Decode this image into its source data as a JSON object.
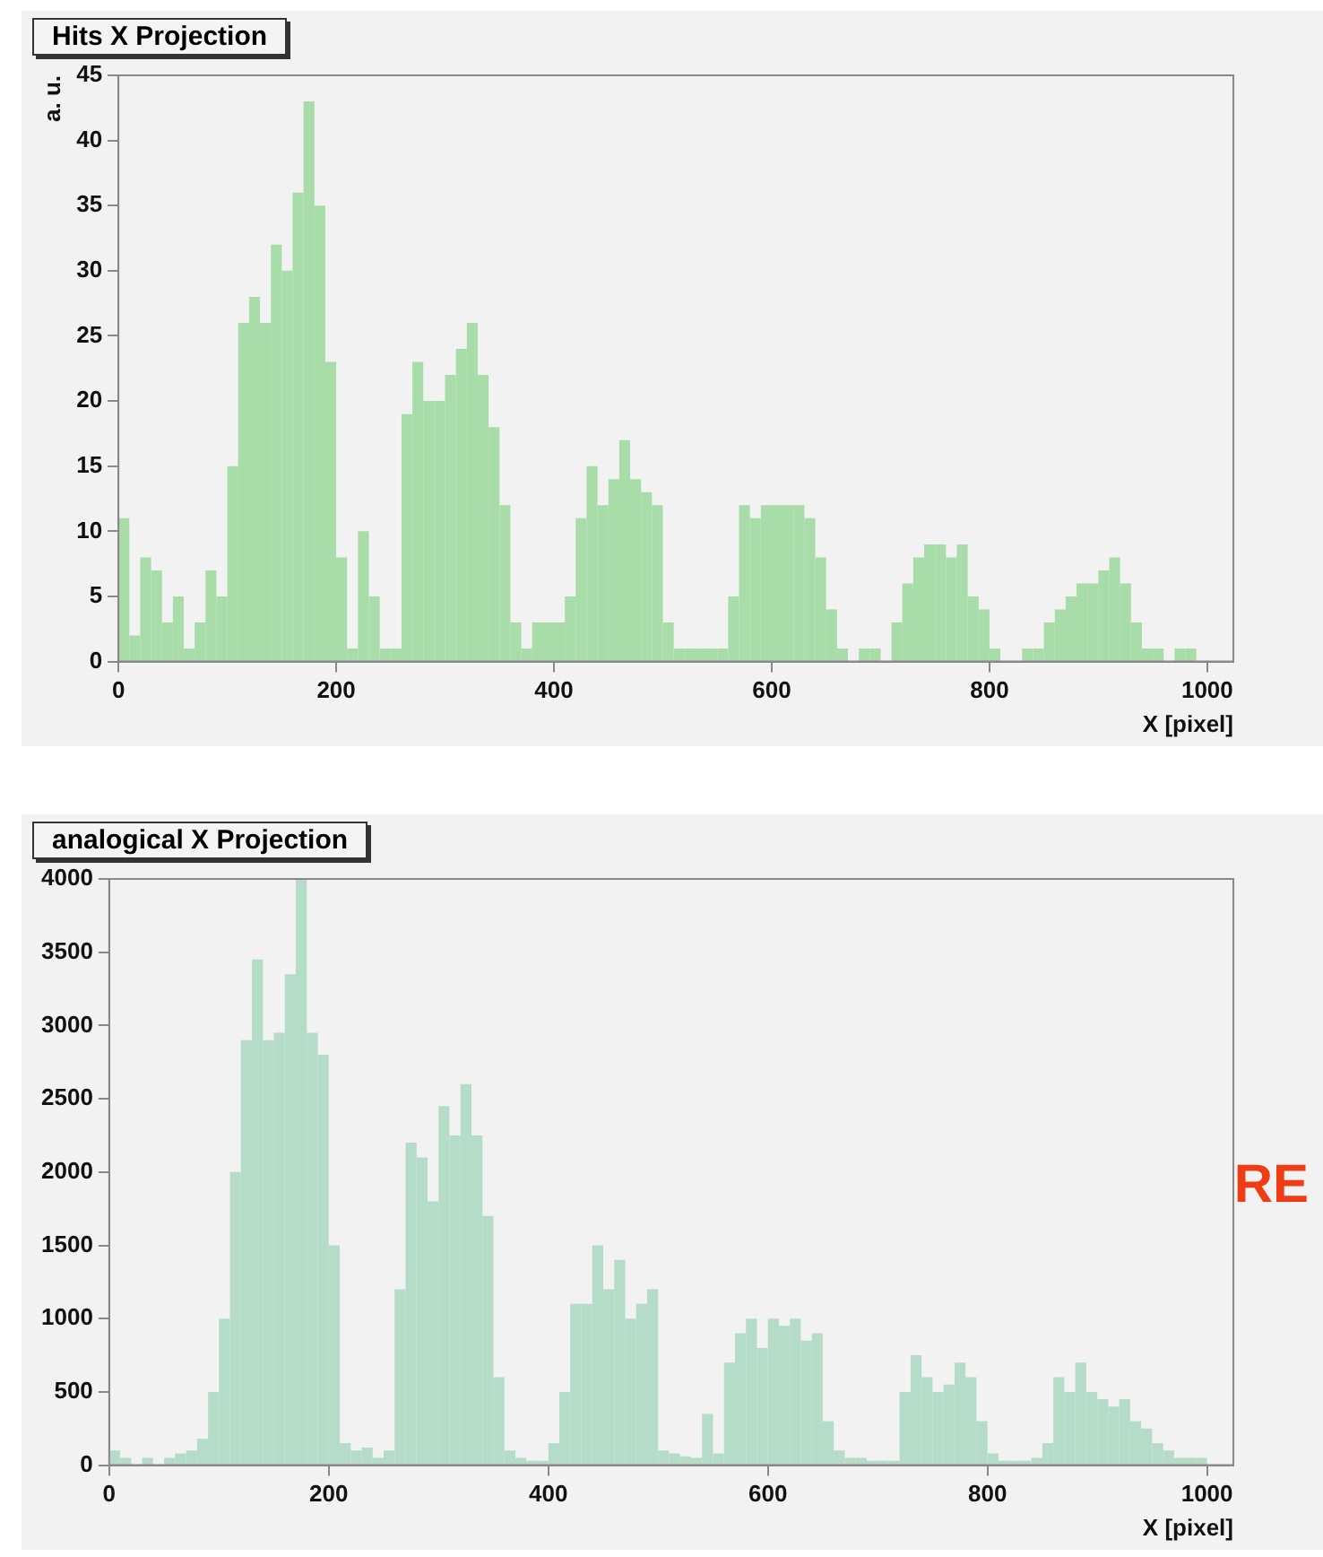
{
  "chart_data": [
    {
      "type": "histogram",
      "title": "Hits X Projection",
      "xlabel": "X [pixel]",
      "ylabel": "a. u.",
      "color": "#a8dca8",
      "grid": false,
      "bins": [
        0,
        10,
        20,
        30,
        40,
        50,
        60,
        70,
        80,
        90,
        100,
        110,
        120,
        130,
        140,
        150,
        160,
        170,
        180,
        190,
        200,
        210,
        220,
        230,
        240,
        250,
        260,
        270,
        280,
        290,
        300,
        310,
        320,
        330,
        340,
        350,
        360,
        370,
        380,
        390,
        400,
        410,
        420,
        430,
        440,
        450,
        460,
        470,
        480,
        490,
        500,
        510,
        520,
        530,
        540,
        550,
        560,
        570,
        580,
        590,
        600,
        610,
        620,
        630,
        640,
        650,
        660,
        670,
        680,
        690,
        700,
        710,
        720,
        730,
        740,
        750,
        760,
        770,
        780,
        790,
        800,
        810,
        820,
        830,
        840,
        850,
        860,
        870,
        880,
        890,
        900,
        910,
        920,
        930,
        940,
        950,
        960,
        970,
        980,
        990,
        1000,
        1010
      ],
      "values": [
        11,
        2,
        8,
        7,
        3,
        5,
        1,
        3,
        7,
        5,
        15,
        26,
        28,
        26,
        32,
        30,
        36,
        43,
        35,
        23,
        8,
        1,
        10,
        5,
        1,
        1,
        19,
        23,
        20,
        20,
        22,
        24,
        26,
        22,
        18,
        12,
        3,
        1,
        3,
        3,
        3,
        5,
        11,
        15,
        12,
        14,
        17,
        14,
        13,
        12,
        3,
        1,
        1,
        1,
        1,
        1,
        5,
        12,
        11,
        12,
        12,
        12,
        12,
        11,
        8,
        4,
        1,
        0,
        1,
        1,
        0,
        3,
        6,
        8,
        9,
        9,
        8,
        9,
        5,
        4,
        1,
        0,
        0,
        1,
        1,
        3,
        4,
        5,
        6,
        6,
        7,
        8,
        6,
        3,
        1,
        1,
        0,
        1,
        1,
        0,
        0
      ],
      "xlim": [
        0,
        1024
      ],
      "xticks": [
        0,
        200,
        400,
        600,
        800,
        1000
      ],
      "ylim": [
        0,
        45
      ],
      "yticks": [
        0,
        5,
        10,
        15,
        20,
        25,
        30,
        35,
        40,
        45
      ]
    },
    {
      "type": "histogram",
      "title": "analogical X Projection",
      "xlabel": "X [pixel]",
      "color": "#b4dcc8",
      "grid": false,
      "annotations": [
        "RE"
      ],
      "bins": [
        0,
        10,
        20,
        30,
        40,
        50,
        60,
        70,
        80,
        90,
        100,
        110,
        120,
        130,
        140,
        150,
        160,
        170,
        180,
        190,
        200,
        210,
        220,
        230,
        240,
        250,
        260,
        270,
        280,
        290,
        300,
        310,
        320,
        330,
        340,
        350,
        360,
        370,
        380,
        390,
        400,
        410,
        420,
        430,
        440,
        450,
        460,
        470,
        480,
        490,
        500,
        510,
        520,
        530,
        540,
        550,
        560,
        570,
        580,
        590,
        600,
        610,
        620,
        630,
        640,
        650,
        660,
        670,
        680,
        690,
        700,
        710,
        720,
        730,
        740,
        750,
        760,
        770,
        780,
        790,
        800,
        810,
        820,
        830,
        840,
        850,
        860,
        870,
        880,
        890,
        900,
        910,
        920,
        930,
        940,
        950,
        960,
        970,
        980,
        990,
        1000,
        1010
      ],
      "values": [
        100,
        50,
        0,
        50,
        0,
        50,
        80,
        100,
        180,
        500,
        1000,
        2000,
        2900,
        3450,
        2900,
        2950,
        3350,
        4000,
        2950,
        2800,
        1500,
        150,
        100,
        120,
        50,
        100,
        1200,
        2200,
        2100,
        1800,
        2450,
        2250,
        2600,
        2250,
        1700,
        600,
        100,
        50,
        30,
        30,
        150,
        500,
        1100,
        1100,
        1500,
        1200,
        1400,
        1000,
        1100,
        1200,
        100,
        80,
        60,
        50,
        350,
        80,
        700,
        900,
        1000,
        800,
        1000,
        950,
        1000,
        850,
        900,
        300,
        100,
        50,
        50,
        30,
        30,
        30,
        500,
        750,
        600,
        500,
        550,
        700,
        600,
        300,
        80,
        30,
        30,
        30,
        50,
        150,
        600,
        500,
        700,
        500,
        450,
        400,
        450,
        300,
        250,
        150,
        100,
        50,
        50,
        50,
        0
      ],
      "xlim": [
        0,
        1024
      ],
      "xticks": [
        0,
        200,
        400,
        600,
        800,
        1000
      ],
      "ylim": [
        0,
        4000
      ],
      "yticks": [
        0,
        500,
        1000,
        1500,
        2000,
        2500,
        3000,
        3500,
        4000
      ]
    }
  ]
}
